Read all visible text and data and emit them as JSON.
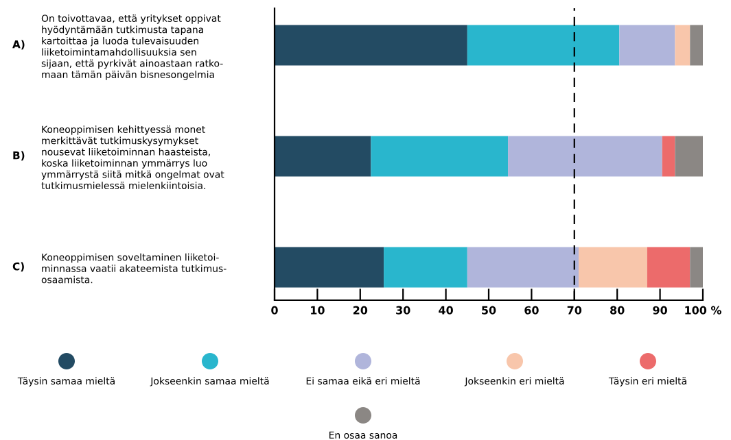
{
  "chart_data": {
    "type": "bar",
    "orientation": "horizontal",
    "stacked": true,
    "categories": [
      "On toivottavaa, että yritykset oppivat\nhyödyntämään tutkimusta tapana\nkartoittaa ja luoda tulevaisuuden\nliiketoimintamahdollisuuksia sen\nsijaan, että pyrkivät ainoastaan ratko-\nmaan tämän päivän bisnesongelmia",
      "Koneoppimisen kehittyessä monet\nmerkittävät tutkimuskysymykset\nnousevat liiketoiminnan haasteista,\nkoska liiketoiminnan ymmärrys luo\nymmärrystä siitä mitkä ongelmat ovat\ntutkimusmielessä mielenkiintoisia.",
      "Koneoppimisen soveltaminen liiketoi-\nminnassa vaatii akateemista tutkimus-\nosaamista."
    ],
    "annotations": [
      "A)",
      "B)",
      "C)"
    ],
    "series": [
      {
        "name": "Täysin samaa mieltä",
        "color": "#234b63",
        "values": [
          45,
          22.5,
          25.5
        ]
      },
      {
        "name": "Jokseenkin samaa mieltä",
        "color": "#29b6cd",
        "values": [
          35.5,
          32,
          19.5
        ]
      },
      {
        "name": "Ei samaa eikä eri mieltä",
        "color": "#b0b5db",
        "values": [
          13,
          36,
          26
        ]
      },
      {
        "name": "Jokseenkin eri mieltä",
        "color": "#f8c6ab",
        "values": [
          3.5,
          0,
          16
        ]
      },
      {
        "name": "Täysin eri mieltä",
        "color": "#ec6b6b",
        "values": [
          0,
          3,
          10
        ]
      },
      {
        "name": "En osaa sanoa",
        "color": "#8b8784",
        "values": [
          3,
          6.5,
          3
        ]
      }
    ],
    "xlim": [
      0,
      100
    ],
    "xticks": [
      0,
      10,
      20,
      30,
      40,
      50,
      60,
      70,
      80,
      90,
      {
        "value": 100,
        "label": "100 %"
      }
    ],
    "ref_lines": [
      {
        "axis": "x",
        "value": 70,
        "color": "#000000",
        "line_style": "dashed"
      }
    ],
    "grid": false,
    "legend": "bottom"
  }
}
